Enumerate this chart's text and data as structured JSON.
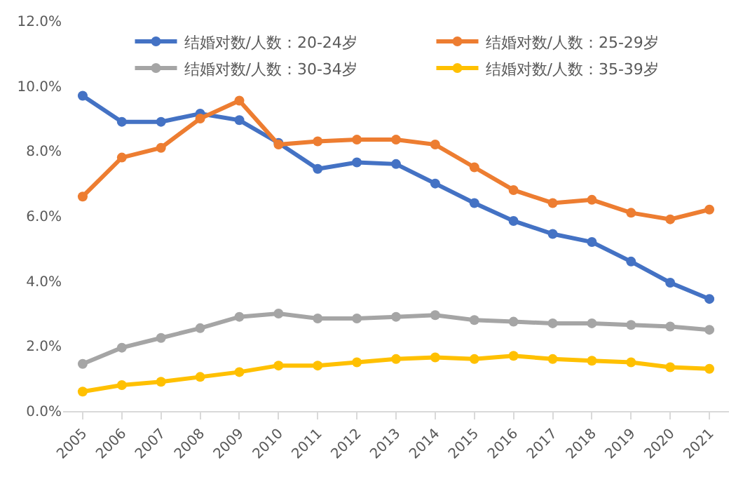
{
  "chart_data": {
    "type": "line",
    "categories": [
      "2005",
      "2006",
      "2007",
      "2008",
      "2009",
      "2010",
      "2011",
      "2012",
      "2013",
      "2014",
      "2015",
      "2016",
      "2017",
      "2018",
      "2019",
      "2020",
      "2021"
    ],
    "series": [
      {
        "name": "结婚对数/人数：20-24岁",
        "color": "#4472c4",
        "values": [
          9.7,
          8.9,
          8.9,
          9.15,
          8.95,
          8.25,
          7.45,
          7.65,
          7.6,
          7.0,
          6.4,
          5.85,
          5.45,
          5.2,
          4.6,
          3.95,
          3.45
        ]
      },
      {
        "name": "结婚对数/人数：25-29岁",
        "color": "#ed7d31",
        "values": [
          6.6,
          7.8,
          8.1,
          9.0,
          9.55,
          8.2,
          8.3,
          8.35,
          8.35,
          8.2,
          7.5,
          6.8,
          6.4,
          6.5,
          6.1,
          5.9,
          6.2
        ]
      },
      {
        "name": "结婚对数/人数：30-34岁",
        "color": "#a5a5a5",
        "values": [
          1.45,
          1.95,
          2.25,
          2.55,
          2.9,
          3.0,
          2.85,
          2.85,
          2.9,
          2.95,
          2.8,
          2.75,
          2.7,
          2.7,
          2.65,
          2.6,
          2.5
        ]
      },
      {
        "name": "结婚对数/人数：35-39岁",
        "color": "#ffc000",
        "values": [
          0.6,
          0.8,
          0.9,
          1.05,
          1.2,
          1.4,
          1.4,
          1.5,
          1.6,
          1.65,
          1.6,
          1.7,
          1.6,
          1.55,
          1.5,
          1.35,
          1.3
        ]
      }
    ],
    "ylim": [
      0,
      12
    ],
    "yticks": [
      {
        "value": 0,
        "label": "0.0%"
      },
      {
        "value": 2,
        "label": "2.0%"
      },
      {
        "value": 4,
        "label": "4.0%"
      },
      {
        "value": 6,
        "label": "6.0%"
      },
      {
        "value": 8,
        "label": "8.0%"
      },
      {
        "value": 10,
        "label": "10.0%"
      },
      {
        "value": 12,
        "label": "12.0%"
      }
    ],
    "grid": false,
    "legend": "top",
    "marker": "circle",
    "line_style": "solid"
  }
}
